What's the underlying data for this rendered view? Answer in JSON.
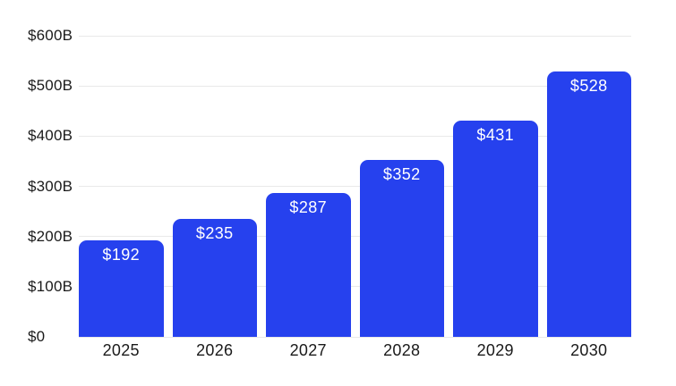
{
  "chart_data": {
    "type": "bar",
    "title": "",
    "xlabel": "",
    "ylabel": "",
    "categories": [
      "2025",
      "2026",
      "2027",
      "2028",
      "2029",
      "2030"
    ],
    "values": [
      192,
      235,
      287,
      352,
      431,
      528
    ],
    "bar_labels": [
      "$192",
      "$235",
      "$287",
      "$352",
      "$431",
      "$528"
    ],
    "y_ticks": [
      0,
      100,
      200,
      300,
      400,
      500,
      600
    ],
    "y_tick_labels": [
      "$0",
      "$100B",
      "$200B",
      "$300B",
      "$400B",
      "$500B",
      "$600B"
    ],
    "ylim": [
      0,
      600
    ],
    "grid": "horizontal",
    "legend": "none",
    "bar_label_position": "inside-top",
    "colors": {
      "bar": "#2641ee",
      "bar_label": "#ffffff",
      "axis_label": "#1a1a1a",
      "gridline": "#e9e9e9",
      "background": "#ffffff"
    }
  }
}
